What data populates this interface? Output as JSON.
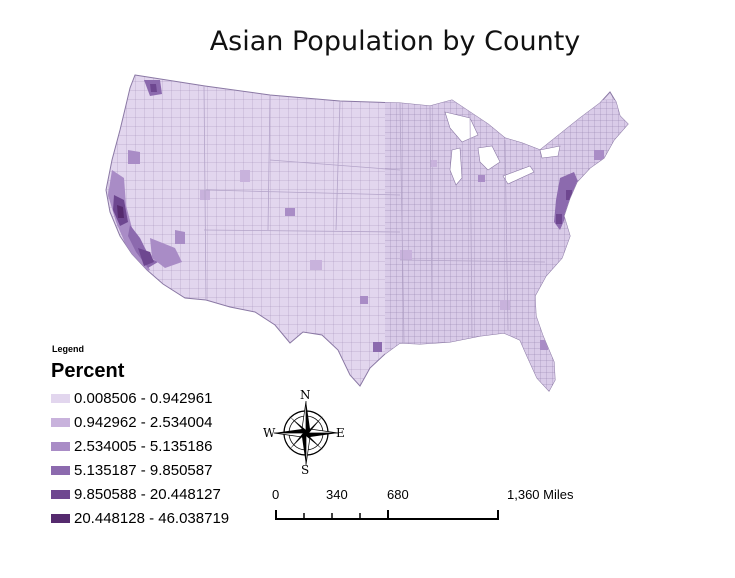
{
  "title": "Asian Population by County",
  "legend": {
    "heading": "Legend",
    "field": "Percent",
    "classes": [
      {
        "label": "0.008506 - 0.942961",
        "color": "#e2d6ee"
      },
      {
        "label": "0.942962 - 2.534004",
        "color": "#c8b2dc"
      },
      {
        "label": "2.534005 - 5.135186",
        "color": "#a98cc6"
      },
      {
        "label": "5.135187 - 9.850587",
        "color": "#8c6aae"
      },
      {
        "label": "9.850588 - 20.448127",
        "color": "#6e4790"
      },
      {
        "label": "20.448128 - 46.038719",
        "color": "#552a6e"
      }
    ]
  },
  "compass": {
    "n": "N",
    "s": "S",
    "e": "E",
    "w": "W"
  },
  "scale_bar": {
    "ticks": [
      "0",
      "340",
      "680",
      "1,360 Miles"
    ]
  },
  "colors": {
    "boundary": "#9c8ab4",
    "state_line": "#ffffff"
  }
}
